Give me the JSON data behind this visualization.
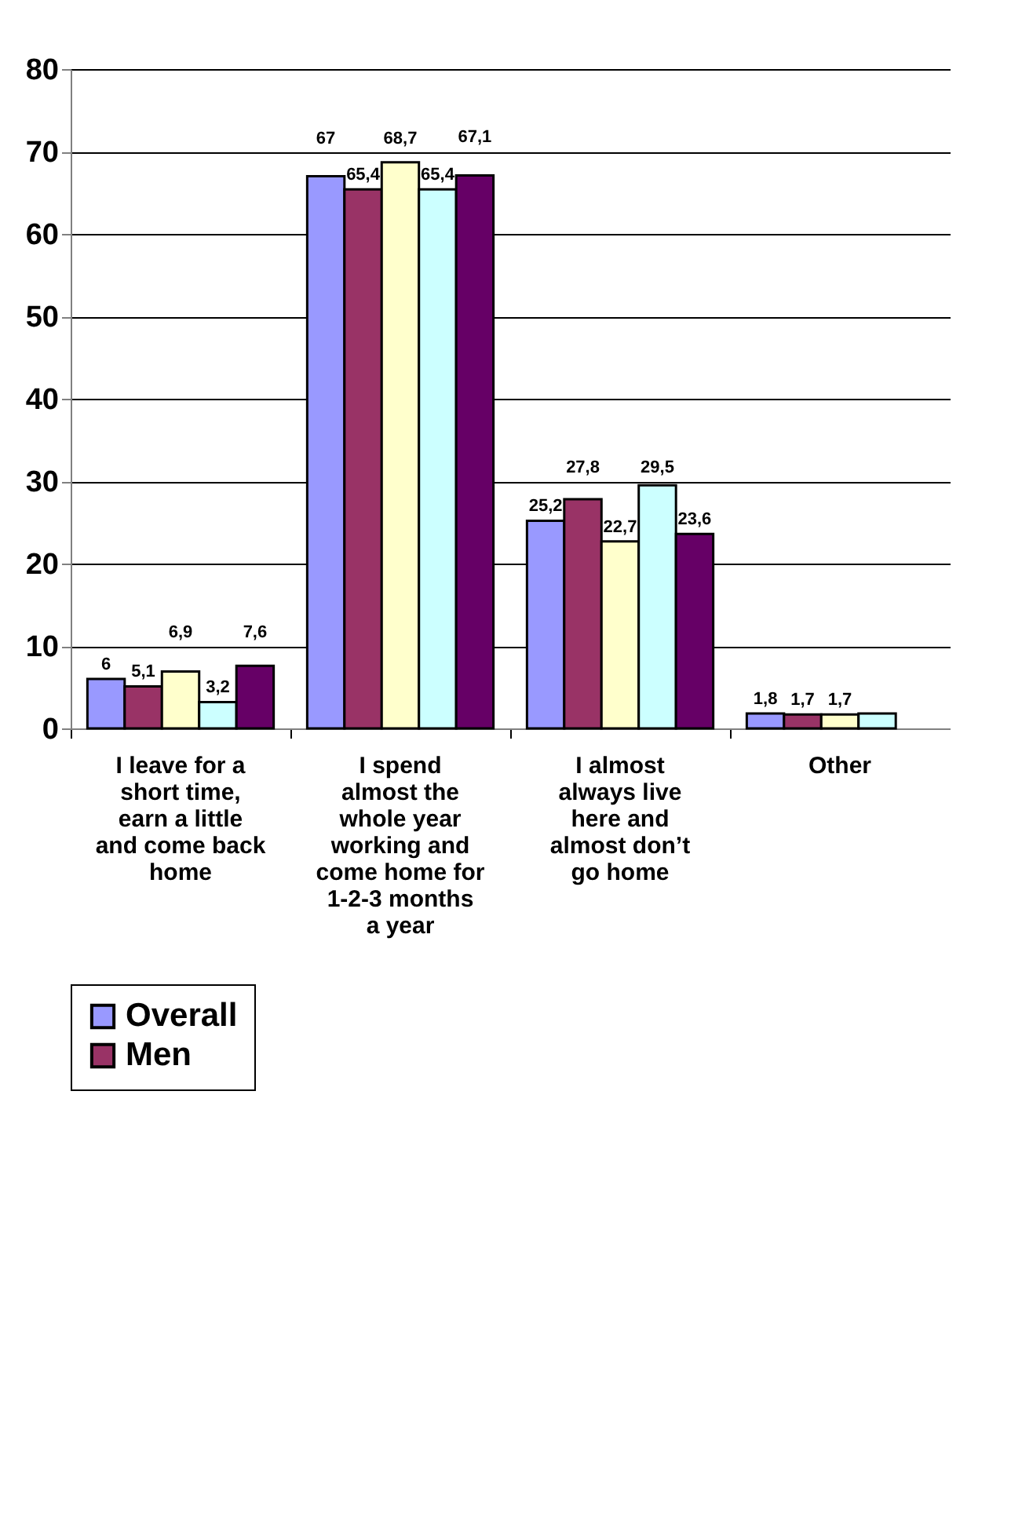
{
  "chart_data": {
    "type": "bar",
    "categories": [
      "I leave for a short time, earn a little and come back home",
      "I spend almost the whole year working and come home for 1-2-3 months a year",
      "I almost always live here and almost don’t go home",
      "Other"
    ],
    "series": [
      {
        "name": "Overall",
        "color": "#9999ff",
        "values": [
          6,
          67,
          25.2,
          1.8
        ],
        "value_labels": [
          "6",
          "67",
          "25,2",
          "1,8"
        ]
      },
      {
        "name": "Men",
        "color": "#993366",
        "values": [
          5.1,
          65.4,
          27.8,
          1.7
        ],
        "value_labels": [
          "5,1",
          "65,4",
          "27,8",
          "1,7"
        ]
      },
      {
        "color": "#ffffcc",
        "values": [
          6.9,
          68.7,
          22.7,
          1.7
        ],
        "value_labels": [
          "6,9",
          "68,7",
          "22,7",
          "1,7"
        ]
      },
      {
        "color": "#ccffff",
        "values": [
          3.2,
          65.4,
          29.5,
          1.8
        ],
        "value_labels": [
          "3,2",
          "65,4",
          "29,5",
          null
        ]
      },
      {
        "color": "#660066",
        "values": [
          7.6,
          67.1,
          23.6,
          null
        ],
        "value_labels": [
          "7,6",
          "67,1",
          "23,6",
          null
        ]
      }
    ],
    "ylim": [
      0,
      80
    ],
    "yticks": [
      0,
      10,
      20,
      30,
      40,
      50,
      60,
      70,
      80
    ],
    "grid": "y",
    "legend": "bottom"
  }
}
